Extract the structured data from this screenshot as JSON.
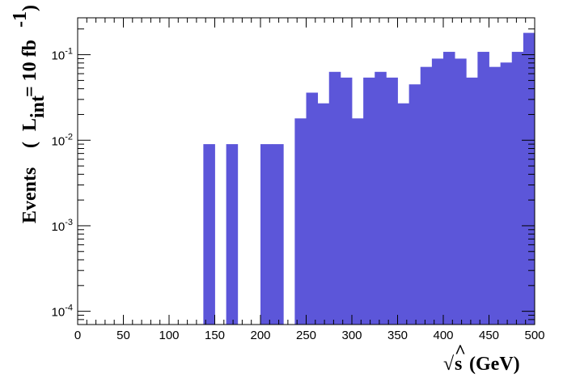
{
  "chart_data": {
    "type": "bar",
    "bin_width": 12.5,
    "x": [
      0,
      12.5,
      25,
      37.5,
      50,
      62.5,
      75,
      87.5,
      100,
      112.5,
      125,
      137.5,
      150,
      162.5,
      175,
      187.5,
      200,
      212.5,
      225,
      237.5,
      250,
      262.5,
      275,
      287.5,
      300,
      312.5,
      325,
      337.5,
      350,
      362.5,
      375,
      387.5,
      400,
      412.5,
      425,
      437.5,
      450,
      462.5,
      475,
      487.5
    ],
    "values": [
      0,
      0,
      0,
      0,
      0,
      0,
      0,
      0,
      0,
      0,
      0,
      0.009,
      0,
      0.009,
      0,
      0,
      0.009,
      0.009,
      0,
      0.018,
      0.036,
      0.027,
      0.063,
      0.054,
      0.018,
      0.054,
      0.063,
      0.054,
      0.027,
      0.045,
      0.072,
      0.09,
      0.108,
      0.09,
      0.054,
      0.108,
      0.072,
      0.081,
      0.108,
      0.18
    ],
    "xlim": [
      0,
      500
    ],
    "ylim": [
      7e-05,
      0.27
    ],
    "yscale": "log",
    "x_ticks": [
      "0",
      "50",
      "100",
      "150",
      "200",
      "250",
      "300",
      "350",
      "400",
      "450",
      "500"
    ],
    "y_ticks": [
      {
        "base": "10",
        "exp": "-4",
        "value": 0.0001
      },
      {
        "base": "10",
        "exp": "-3",
        "value": 0.001
      },
      {
        "base": "10",
        "exp": "-2",
        "value": 0.01
      },
      {
        "base": "10",
        "exp": "-1",
        "value": 0.1
      }
    ],
    "xlabel": {
      "root": "√",
      "s": "s",
      "hat": "^",
      "unit": "(GeV)"
    },
    "ylabel": {
      "main": "Events",
      "open": "(",
      "L": "L",
      "sub": "int",
      "eq": "= 10 fb",
      "sup": "-1",
      "close": ")"
    },
    "bar_color": "#5c56d9",
    "grid": false
  }
}
